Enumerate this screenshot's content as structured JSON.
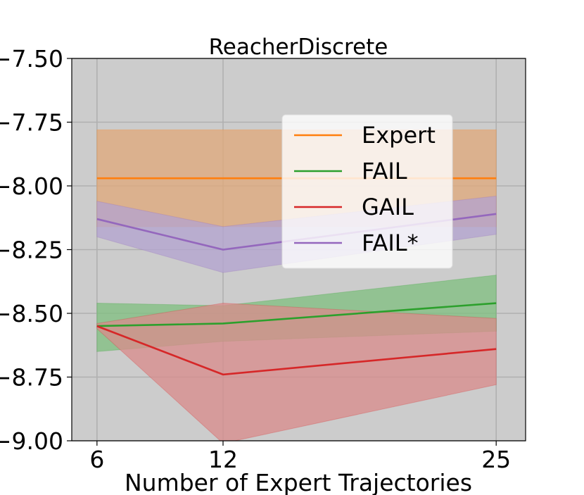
{
  "chart_data": {
    "type": "line",
    "title": "ReacherDiscrete",
    "xlabel": "Number of Expert Trajectories",
    "ylabel": "",
    "x": [
      6,
      12,
      25
    ],
    "x_ticks": [
      "6",
      "12",
      "25"
    ],
    "y_ticks": [
      "−7.50",
      "−7.75",
      "−8.00",
      "−8.25",
      "−8.50",
      "−8.75",
      "−9.00"
    ],
    "y_tick_values": [
      -7.5,
      -7.75,
      -8.0,
      -8.25,
      -8.5,
      -8.75,
      -9.0
    ],
    "ylim": [
      -9.0,
      -7.5
    ],
    "xlim": [
      4.8,
      26.4
    ],
    "grid": true,
    "background": "#cccccc",
    "legend_position": "upper-right",
    "series": [
      {
        "name": "Expert",
        "color": "#ff7f0e",
        "fill": "#e0a87a",
        "values": [
          -7.97,
          -7.97,
          -7.97
        ],
        "lower": [
          -8.16,
          -8.16,
          -8.16
        ],
        "upper": [
          -7.78,
          -7.78,
          -7.78
        ]
      },
      {
        "name": "FAIL",
        "color": "#2ca02c",
        "fill": "#7fbf7f",
        "values": [
          -8.55,
          -8.54,
          -8.46
        ],
        "lower": [
          -8.65,
          -8.61,
          -8.57
        ],
        "upper": [
          -8.46,
          -8.47,
          -8.35
        ]
      },
      {
        "name": "GAIL",
        "color": "#d62728",
        "fill": "#d98b8b",
        "values": [
          -8.55,
          -8.74,
          -8.64
        ],
        "lower": [
          -8.56,
          -9.01,
          -8.78
        ],
        "upper": [
          -8.54,
          -8.46,
          -8.52
        ]
      },
      {
        "name": "FAIL*",
        "color": "#9467bd",
        "fill": "#b3a3d0",
        "values": [
          -8.13,
          -8.25,
          -8.11
        ],
        "lower": [
          -8.2,
          -8.34,
          -8.19
        ],
        "upper": [
          -8.06,
          -8.16,
          -8.04
        ]
      }
    ]
  }
}
